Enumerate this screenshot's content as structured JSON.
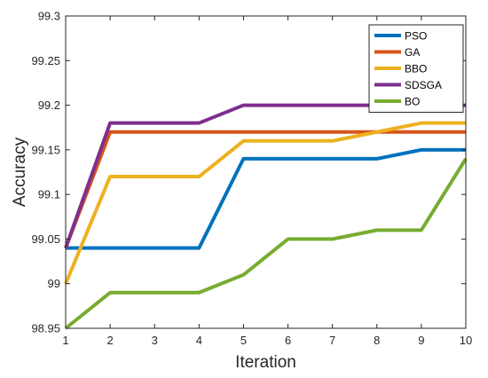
{
  "chart_data": {
    "type": "line",
    "xlabel": "Iteration",
    "ylabel": "Accuracy",
    "x": [
      1,
      2,
      3,
      4,
      5,
      6,
      7,
      8,
      9,
      10
    ],
    "xlim": [
      1,
      10
    ],
    "ylim": [
      98.95,
      99.3
    ],
    "xticks": [
      1,
      2,
      3,
      4,
      5,
      6,
      7,
      8,
      9,
      10
    ],
    "yticks": [
      98.95,
      99,
      99.05,
      99.1,
      99.15,
      99.2,
      99.25,
      99.3
    ],
    "ytick_labels": [
      "98.95",
      "99",
      "99.05",
      "99.1",
      "99.15",
      "99.2",
      "99.25",
      "99.3"
    ],
    "grid": false,
    "legend_position": "top-right",
    "series": [
      {
        "name": "PSO",
        "color": "#0072BD",
        "values": [
          99.04,
          99.04,
          99.04,
          99.04,
          99.14,
          99.14,
          99.14,
          99.14,
          99.15,
          99.15
        ]
      },
      {
        "name": "GA",
        "color": "#D95319",
        "values": [
          99.04,
          99.17,
          99.17,
          99.17,
          99.17,
          99.17,
          99.17,
          99.17,
          99.17,
          99.17
        ]
      },
      {
        "name": "BBO",
        "color": "#EDB120",
        "values": [
          99.0,
          99.12,
          99.12,
          99.12,
          99.16,
          99.16,
          99.16,
          99.17,
          99.18,
          99.18
        ]
      },
      {
        "name": "SDSGA",
        "color": "#7E2F8E",
        "values": [
          99.04,
          99.18,
          99.18,
          99.18,
          99.2,
          99.2,
          99.2,
          99.2,
          99.2,
          99.2
        ]
      },
      {
        "name": "BO",
        "color": "#77AC30",
        "values": [
          98.95,
          98.99,
          98.99,
          98.99,
          99.01,
          99.05,
          99.05,
          99.06,
          99.06,
          99.14
        ]
      }
    ]
  }
}
